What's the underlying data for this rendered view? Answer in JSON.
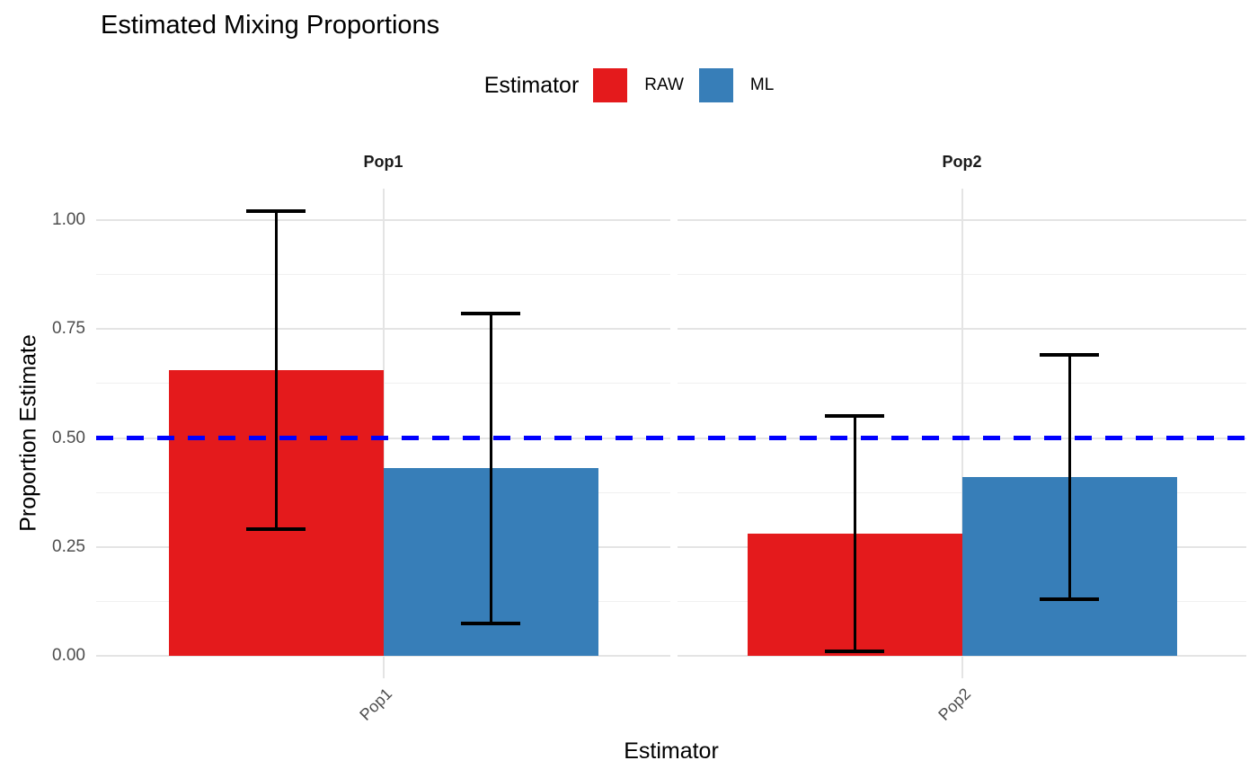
{
  "page": {
    "title": "Estimated Mixing Proportions"
  },
  "legend": {
    "title": "Estimator",
    "position": "top",
    "items": [
      {
        "label": "RAW",
        "color": "#E41A1C"
      },
      {
        "label": "ML",
        "color": "#377EB8"
      }
    ]
  },
  "axes": {
    "x_title": "Estimator",
    "y_title": "Proportion Estimate"
  },
  "chart_data": {
    "type": "bar",
    "title": "Estimated Mixing Proportions",
    "xlabel": "Estimator",
    "ylabel": "Proportion Estimate",
    "legend_title": "Estimator",
    "legend_position": "top",
    "grid": {
      "horizontal_major": true,
      "horizontal_minor": true,
      "vertical_category_line": true,
      "color": "#E4E4E4"
    },
    "ylim": [
      -0.05,
      1.07
    ],
    "y_ticks": [
      {
        "value": 0.0,
        "label": "0.00"
      },
      {
        "value": 0.25,
        "label": "0.25"
      },
      {
        "value": 0.5,
        "label": "0.50"
      },
      {
        "value": 0.75,
        "label": "0.75"
      },
      {
        "value": 1.0,
        "label": "1.00"
      }
    ],
    "y_minor_ticks": [
      0.125,
      0.375,
      0.625,
      0.875
    ],
    "reference_line": {
      "y": 0.5,
      "color": "#0000FF",
      "style": "dashed"
    },
    "series": [
      {
        "name": "RAW",
        "color": "#E41A1C"
      },
      {
        "name": "ML",
        "color": "#377EB8"
      }
    ],
    "facets": [
      {
        "label": "Pop1",
        "x_tick_label": "Pop1",
        "bars": [
          {
            "series": "RAW",
            "estimate": 0.655,
            "ci_lower": 0.29,
            "ci_upper": 1.02
          },
          {
            "series": "ML",
            "estimate": 0.43,
            "ci_lower": 0.075,
            "ci_upper": 0.785
          }
        ]
      },
      {
        "label": "Pop2",
        "x_tick_label": "Pop2",
        "bars": [
          {
            "series": "RAW",
            "estimate": 0.28,
            "ci_lower": 0.01,
            "ci_upper": 0.55
          },
          {
            "series": "ML",
            "estimate": 0.41,
            "ci_lower": 0.13,
            "ci_upper": 0.69
          }
        ]
      }
    ]
  }
}
